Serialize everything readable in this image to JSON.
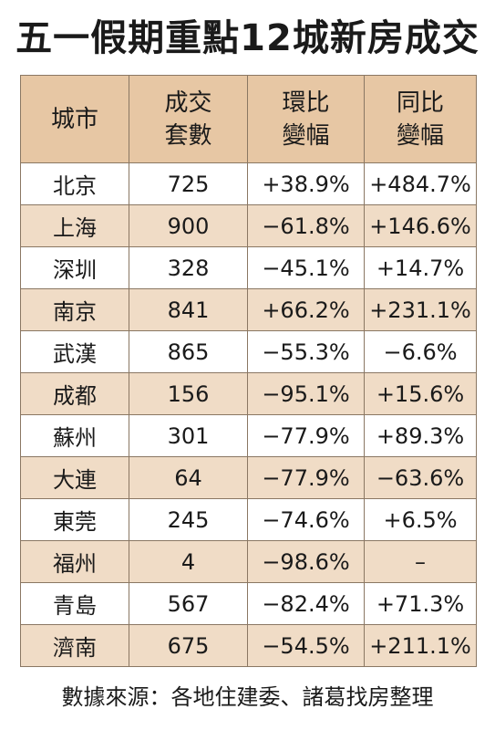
{
  "title": "五一假期重點12城新房成交",
  "headers": {
    "city": "城市",
    "volume_line1": "成交",
    "volume_line2": "套數",
    "mom_line1": "環比",
    "mom_line2": "變幅",
    "yoy_line1": "同比",
    "yoy_line2": "變幅"
  },
  "rows": [
    {
      "city": "北京",
      "volume": "725",
      "mom": "+38.9%",
      "yoy": "+484.7%"
    },
    {
      "city": "上海",
      "volume": "900",
      "mom": "−61.8%",
      "yoy": "+146.6%"
    },
    {
      "city": "深圳",
      "volume": "328",
      "mom": "−45.1%",
      "yoy": "+14.7%"
    },
    {
      "city": "南京",
      "volume": "841",
      "mom": "+66.2%",
      "yoy": "+231.1%"
    },
    {
      "city": "武漢",
      "volume": "865",
      "mom": "−55.3%",
      "yoy": "−6.6%"
    },
    {
      "city": "成都",
      "volume": "156",
      "mom": "−95.1%",
      "yoy": "+15.6%"
    },
    {
      "city": "蘇州",
      "volume": "301",
      "mom": "−77.9%",
      "yoy": "+89.3%"
    },
    {
      "city": "大連",
      "volume": "64",
      "mom": "−77.9%",
      "yoy": "−63.6%"
    },
    {
      "city": "東莞",
      "volume": "245",
      "mom": "−74.6%",
      "yoy": "+6.5%"
    },
    {
      "city": "福州",
      "volume": "4",
      "mom": "−98.6%",
      "yoy": "–"
    },
    {
      "city": "青島",
      "volume": "567",
      "mom": "−82.4%",
      "yoy": "+71.3%"
    },
    {
      "city": "濟南",
      "volume": "675",
      "mom": "−54.5%",
      "yoy": "+211.1%"
    }
  ],
  "source": "數據來源：各地住建委、諸葛找房整理",
  "colors": {
    "header_bg": "#e7c7a4",
    "shaded_row_bg": "#f0dcc6",
    "border": "#8a7763"
  }
}
